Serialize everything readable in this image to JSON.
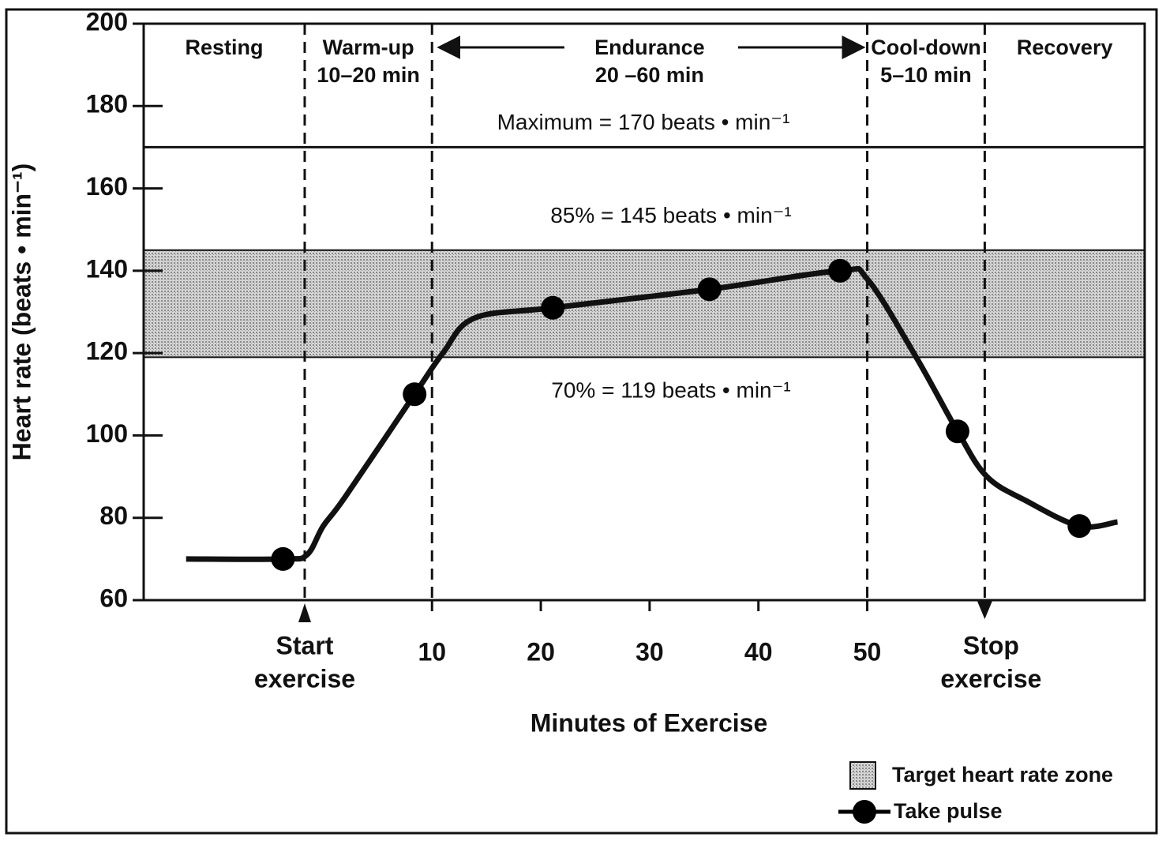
{
  "chart_data": {
    "type": "line",
    "ylabel": "Heart rate (beats • min⁻¹)",
    "xlabel": "Minutes of Exercise",
    "xlim": [
      -16.5,
      75.5
    ],
    "xticks": [
      10,
      20,
      30,
      40,
      50
    ],
    "ylim": [
      60,
      200
    ],
    "yticks": [
      60,
      80,
      100,
      120,
      140,
      160,
      180,
      200
    ],
    "dividers": [
      -1.7,
      10,
      50,
      60.8
    ],
    "phases": [
      {
        "name": "Resting"
      },
      {
        "name": "Warm-up",
        "duration": "10–20 min"
      },
      {
        "name": "Endurance",
        "duration": "20 –60 min"
      },
      {
        "name": "Cool-down",
        "duration": "5–10 min"
      },
      {
        "name": "Recovery"
      }
    ],
    "start_label": [
      "Start",
      "exercise"
    ],
    "stop_label": [
      "Stop",
      "exercise"
    ],
    "max_line": {
      "value": 170,
      "label": "Maximum = 170 beats • min⁻¹"
    },
    "zone": {
      "name": "Target heart rate zone",
      "lower": 119,
      "upper": 145,
      "lower_label": "70% = 119 beats • min⁻¹",
      "upper_label": "85% = 145 beats • min⁻¹"
    },
    "curve": {
      "x": [
        -12.6,
        -3.7,
        -1.5,
        0,
        2,
        8.4,
        11,
        13.9,
        21.1,
        35.5,
        47.5,
        50,
        54.5,
        58.3,
        61,
        64.7,
        69.5,
        73
      ],
      "values": [
        70,
        70,
        71,
        78,
        85,
        110,
        120,
        128.5,
        131,
        135.5,
        140,
        138,
        119,
        101,
        90,
        84,
        78,
        79
      ]
    },
    "series": [
      {
        "name": "Take pulse",
        "color": "#000000",
        "x": [
          -3.7,
          8.4,
          21.1,
          35.5,
          47.5,
          58.3,
          69.5
        ],
        "values": [
          70,
          110,
          131,
          135.5,
          140,
          101,
          78
        ]
      }
    ]
  }
}
